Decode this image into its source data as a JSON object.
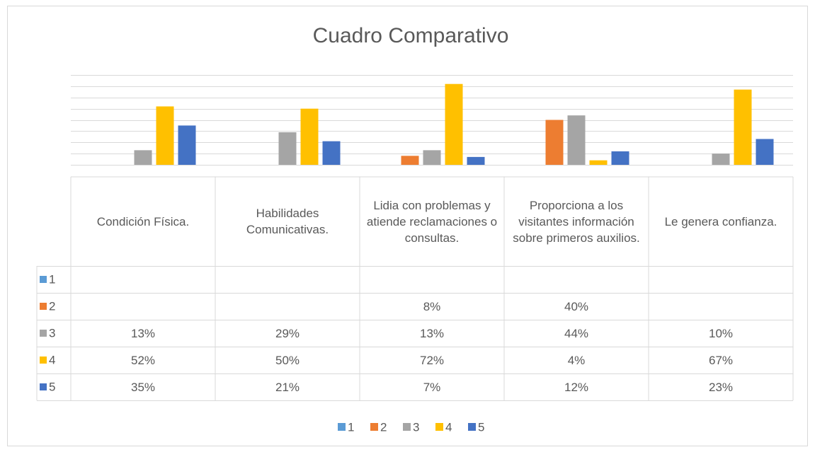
{
  "chart_data": {
    "type": "bar",
    "title": "Cuadro Comparativo",
    "categories": [
      "Condición Física.",
      "Habilidades Comunicativas.",
      "Lidia con problemas y atiende reclamaciones o consultas.",
      "Proporciona a los visitantes información sobre primeros auxilios.",
      "Le genera confianza."
    ],
    "series": [
      {
        "name": "1",
        "color": "#5b9bd5",
        "values": [
          null,
          null,
          null,
          null,
          null
        ],
        "value_labels": [
          null,
          null,
          null,
          null,
          null
        ]
      },
      {
        "name": "2",
        "color": "#ed7d31",
        "values": [
          null,
          null,
          8,
          40,
          null
        ],
        "value_labels": [
          null,
          null,
          "8%",
          "40%",
          null
        ]
      },
      {
        "name": "3",
        "color": "#a5a5a5",
        "values": [
          13,
          29,
          13,
          44,
          10
        ],
        "value_labels": [
          "13%",
          "29%",
          "13%",
          "44%",
          "10%"
        ]
      },
      {
        "name": "4",
        "color": "#ffc000",
        "values": [
          52,
          50,
          72,
          4,
          67
        ],
        "value_labels": [
          "52%",
          "50%",
          "72%",
          "4%",
          "67%"
        ]
      },
      {
        "name": "5",
        "color": "#4472c4",
        "values": [
          35,
          21,
          7,
          12,
          23
        ],
        "value_labels": [
          "35%",
          "21%",
          "7%",
          "12%",
          "23%"
        ]
      }
    ],
    "ylim": [
      0,
      80
    ],
    "yticks": [
      0,
      10,
      20,
      30,
      40,
      50,
      60,
      70,
      80
    ],
    "grid": true,
    "legend": "bottom"
  }
}
